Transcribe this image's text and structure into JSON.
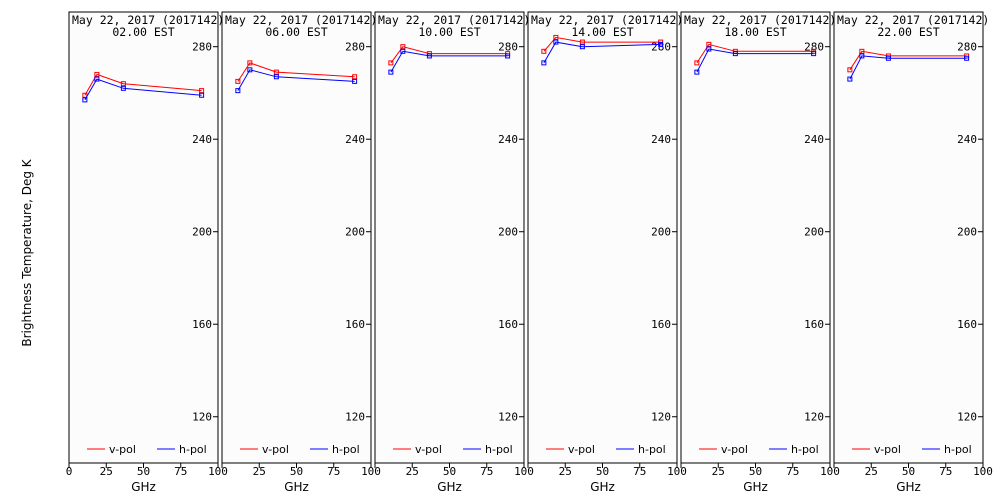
{
  "chart_data": {
    "type": "line",
    "ylabel": "Brightness Temperature, Deg K",
    "xlabel": "GHz",
    "xlim": [
      0,
      100
    ],
    "ylim": [
      100,
      295
    ],
    "x_ticks": [
      0,
      25,
      50,
      75,
      100
    ],
    "y_ticks": [
      120,
      160,
      200,
      240,
      280
    ],
    "series_colors": {
      "v-pol": "#ff0000",
      "h-pol": "#0000ff"
    },
    "legend": [
      "v-pol",
      "h-pol"
    ],
    "legend_position": "bottom",
    "x": [
      10.65,
      18.7,
      36.5,
      89.0
    ],
    "panels": [
      {
        "title_date": "May 22, 2017 (2017142)",
        "title_time": "02.00 EST",
        "series": [
          {
            "name": "v-pol",
            "values": [
              259,
              268,
              264,
              261
            ]
          },
          {
            "name": "h-pol",
            "values": [
              257,
              266,
              262,
              259
            ]
          }
        ]
      },
      {
        "title_date": "May 22, 2017 (2017142)",
        "title_time": "06.00 EST",
        "series": [
          {
            "name": "v-pol",
            "values": [
              265,
              273,
              269,
              267
            ]
          },
          {
            "name": "h-pol",
            "values": [
              261,
              270,
              267,
              265
            ]
          }
        ]
      },
      {
        "title_date": "May 22, 2017 (2017142)",
        "title_time": "10.00 EST",
        "series": [
          {
            "name": "v-pol",
            "values": [
              273,
              280,
              277,
              277
            ]
          },
          {
            "name": "h-pol",
            "values": [
              269,
              278,
              276,
              276
            ]
          }
        ]
      },
      {
        "title_date": "May 22, 2017 (2017142)",
        "title_time": "14.00 EST",
        "series": [
          {
            "name": "v-pol",
            "values": [
              278,
              284,
              282,
              282
            ]
          },
          {
            "name": "h-pol",
            "values": [
              273,
              282,
              280,
              281
            ]
          }
        ]
      },
      {
        "title_date": "May 22, 2017 (2017142)",
        "title_time": "18.00 EST",
        "series": [
          {
            "name": "v-pol",
            "values": [
              273,
              281,
              278,
              278
            ]
          },
          {
            "name": "h-pol",
            "values": [
              269,
              279,
              277,
              277
            ]
          }
        ]
      },
      {
        "title_date": "May 22, 2017 (2017142)",
        "title_time": "22.00 EST",
        "series": [
          {
            "name": "v-pol",
            "values": [
              270,
              278,
              276,
              276
            ]
          },
          {
            "name": "h-pol",
            "values": [
              266,
              276,
              275,
              275
            ]
          }
        ]
      }
    ]
  }
}
